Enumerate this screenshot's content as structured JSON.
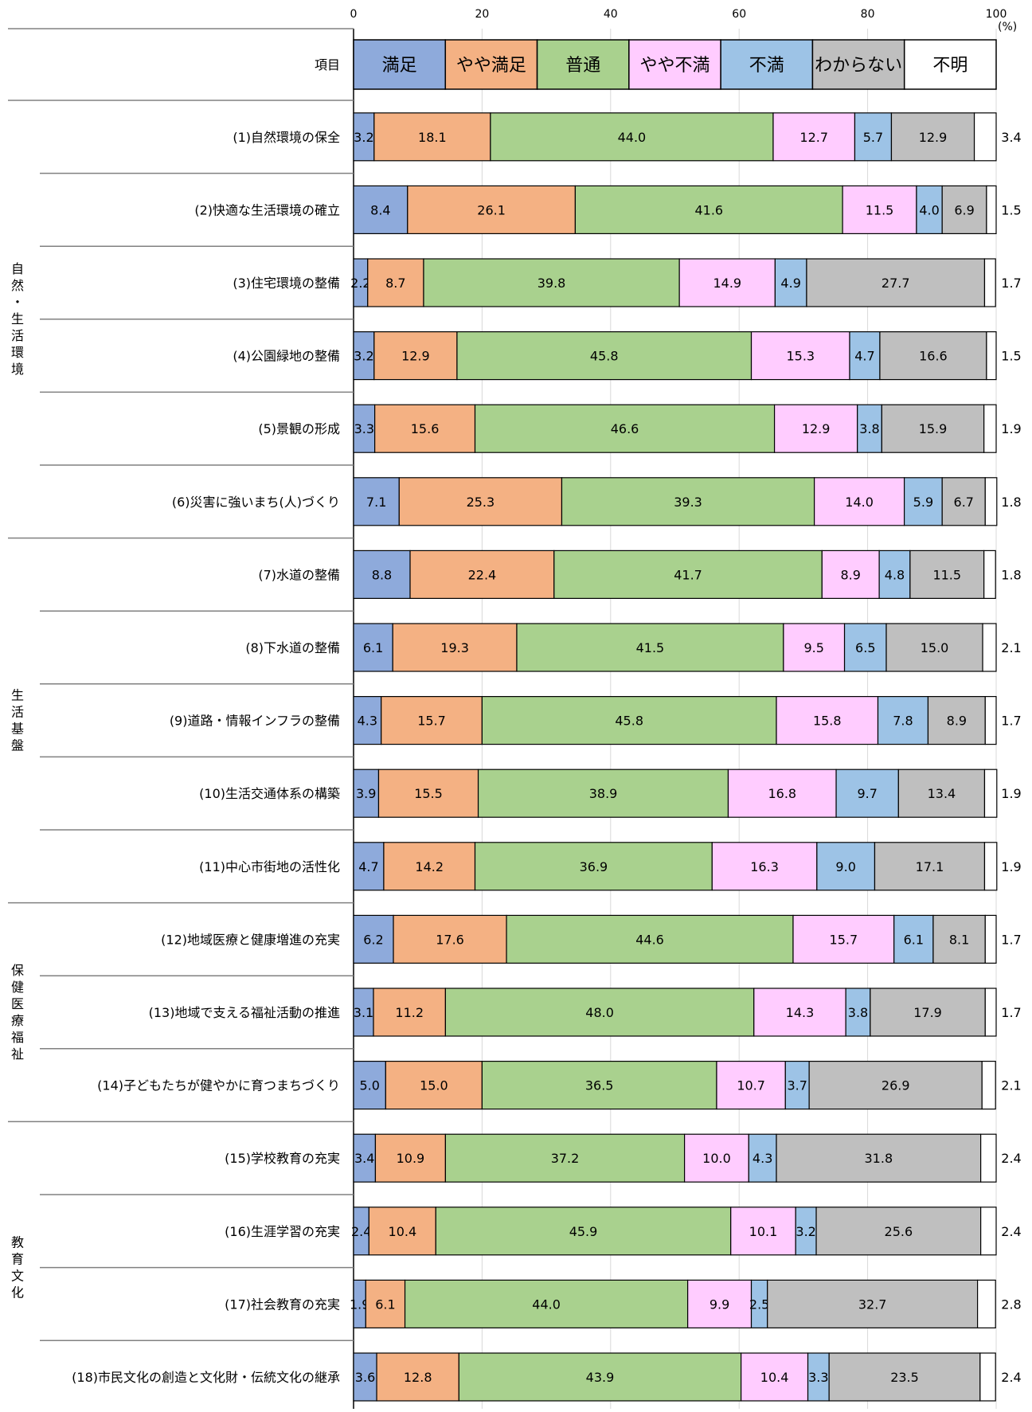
{
  "chart_data": {
    "type": "bar",
    "orientation": "horizontal",
    "stacked": true,
    "unit": "(%)",
    "xlim": [
      0,
      100
    ],
    "xticks": [
      "0",
      "20",
      "40",
      "60",
      "80",
      "100"
    ],
    "grid": true,
    "legend_header": "項目",
    "legend_placement": "top",
    "series": [
      {
        "name": "満足",
        "color": "#8eaadb"
      },
      {
        "name": "やや満足",
        "color": "#f4b183"
      },
      {
        "name": "普通",
        "color": "#a9d18e"
      },
      {
        "name": "やや不満",
        "color": "#ffccff"
      },
      {
        "name": "不満",
        "color": "#9dc3e6"
      },
      {
        "name": "わからない",
        "color": "#bfbfbf"
      },
      {
        "name": "不明",
        "color": "#ffffff"
      }
    ],
    "groups": [
      {
        "label": "自然・生活環境",
        "items": [
          0,
          5
        ]
      },
      {
        "label": "生活基盤",
        "items": [
          6,
          10
        ]
      },
      {
        "label": "保健医療福祉",
        "items": [
          11,
          13
        ]
      },
      {
        "label": "教育文化",
        "items": [
          14,
          17
        ]
      }
    ],
    "categories": [
      {
        "label": "(1)自然環境の保全",
        "values": [
          3.2,
          18.1,
          44.0,
          12.7,
          5.7,
          12.9,
          3.4
        ],
        "labels": [
          "3.2",
          "18.1",
          "44.0",
          "12.7",
          "5.7",
          "12.9",
          "3.4"
        ]
      },
      {
        "label": "(2)快適な生活環境の確立",
        "values": [
          8.4,
          26.1,
          41.6,
          11.5,
          4.0,
          6.9,
          1.5
        ],
        "labels": [
          "8.4",
          "26.1",
          "41.6",
          "11.5",
          "4.0",
          "6.9",
          "1.5"
        ]
      },
      {
        "label": "(3)住宅環境の整備",
        "values": [
          2.2,
          8.7,
          39.8,
          14.9,
          4.9,
          27.7,
          1.7
        ],
        "labels": [
          "2.2",
          "8.7",
          "39.8",
          "14.9",
          "4.9",
          "27.7",
          "1.7"
        ]
      },
      {
        "label": "(4)公園緑地の整備",
        "values": [
          3.2,
          12.9,
          45.8,
          15.3,
          4.7,
          16.6,
          1.5
        ],
        "labels": [
          "3.2",
          "12.9",
          "45.8",
          "15.3",
          "4.7",
          "16.6",
          "1.5"
        ]
      },
      {
        "label": "(5)景観の形成",
        "values": [
          3.3,
          15.6,
          46.6,
          12.9,
          3.8,
          15.9,
          1.9
        ],
        "labels": [
          "3.3",
          "15.6",
          "46.6",
          "12.9",
          "3.8",
          "15.9",
          "1.9"
        ]
      },
      {
        "label": "(6)災害に強いまち(人)づくり",
        "values": [
          7.1,
          25.3,
          39.3,
          14.0,
          5.9,
          6.7,
          1.8
        ],
        "labels": [
          "7.1",
          "25.3",
          "39.3",
          "14.0",
          "5.9",
          "6.7",
          "1.8"
        ]
      },
      {
        "label": "(7)水道の整備",
        "values": [
          8.8,
          22.4,
          41.7,
          8.9,
          4.8,
          11.5,
          1.8
        ],
        "labels": [
          "8.8",
          "22.4",
          "41.7",
          "8.9",
          "4.8",
          "11.5",
          "1.8"
        ]
      },
      {
        "label": "(8)下水道の整備",
        "values": [
          6.1,
          19.3,
          41.5,
          9.5,
          6.5,
          15.0,
          2.1
        ],
        "labels": [
          "6.1",
          "19.3",
          "41.5",
          "9.5",
          "6.5",
          "15.0",
          "2.1"
        ]
      },
      {
        "label": "(9)道路・情報インフラの整備",
        "values": [
          4.3,
          15.7,
          45.8,
          15.8,
          7.8,
          8.9,
          1.7
        ],
        "labels": [
          "4.3",
          "15.7",
          "45.8",
          "15.8",
          "7.8",
          "8.9",
          "1.7"
        ]
      },
      {
        "label": "(10)生活交通体系の構築",
        "values": [
          3.9,
          15.5,
          38.9,
          16.8,
          9.7,
          13.4,
          1.9
        ],
        "labels": [
          "3.9",
          "15.5",
          "38.9",
          "16.8",
          "9.7",
          "13.4",
          "1.9"
        ]
      },
      {
        "label": "(11)中心市街地の活性化",
        "values": [
          4.7,
          14.2,
          36.9,
          16.3,
          9.0,
          17.1,
          1.9
        ],
        "labels": [
          "4.7",
          "14.2",
          "36.9",
          "16.3",
          "9.0",
          "17.1",
          "1.9"
        ]
      },
      {
        "label": "(12)地域医療と健康増進の充実",
        "values": [
          6.2,
          17.6,
          44.6,
          15.7,
          6.1,
          8.1,
          1.7
        ],
        "labels": [
          "6.2",
          "17.6",
          "44.6",
          "15.7",
          "6.1",
          "8.1",
          "1.7"
        ]
      },
      {
        "label": "(13)地域で支える福祉活動の推進",
        "values": [
          3.1,
          11.2,
          48.0,
          14.3,
          3.8,
          17.9,
          1.7
        ],
        "labels": [
          "3.1",
          "11.2",
          "48.0",
          "14.3",
          "3.8",
          "17.9",
          "1.7"
        ]
      },
      {
        "label": "(14)子どもたちが健やかに育つまちづくり",
        "values": [
          5.0,
          15.0,
          36.5,
          10.7,
          3.7,
          26.9,
          2.1
        ],
        "labels": [
          "5.0",
          "15.0",
          "36.5",
          "10.7",
          "3.7",
          "26.9",
          "2.1"
        ]
      },
      {
        "label": "(15)学校教育の充実",
        "values": [
          3.4,
          10.9,
          37.2,
          10.0,
          4.3,
          31.8,
          2.4
        ],
        "labels": [
          "3.4",
          "10.9",
          "37.2",
          "10.0",
          "4.3",
          "31.8",
          "2.4"
        ]
      },
      {
        "label": "(16)生涯学習の充実",
        "values": [
          2.4,
          10.4,
          45.9,
          10.1,
          3.2,
          25.6,
          2.4
        ],
        "labels": [
          "2.4",
          "10.4",
          "45.9",
          "10.1",
          "3.2",
          "25.6",
          "2.4"
        ]
      },
      {
        "label": "(17)社会教育の充実",
        "values": [
          1.9,
          6.1,
          44.0,
          9.9,
          2.5,
          32.7,
          2.8
        ],
        "labels": [
          "1.9",
          "6.1",
          "44.0",
          "9.9",
          "2.5",
          "32.7",
          "2.8"
        ]
      },
      {
        "label": "(18)市民文化の創造と文化財・伝統文化の継承",
        "values": [
          3.6,
          12.8,
          43.9,
          10.4,
          3.3,
          23.5,
          2.4
        ],
        "labels": [
          "3.6",
          "12.8",
          "43.9",
          "10.4",
          "3.3",
          "23.5",
          "2.4"
        ]
      }
    ]
  }
}
